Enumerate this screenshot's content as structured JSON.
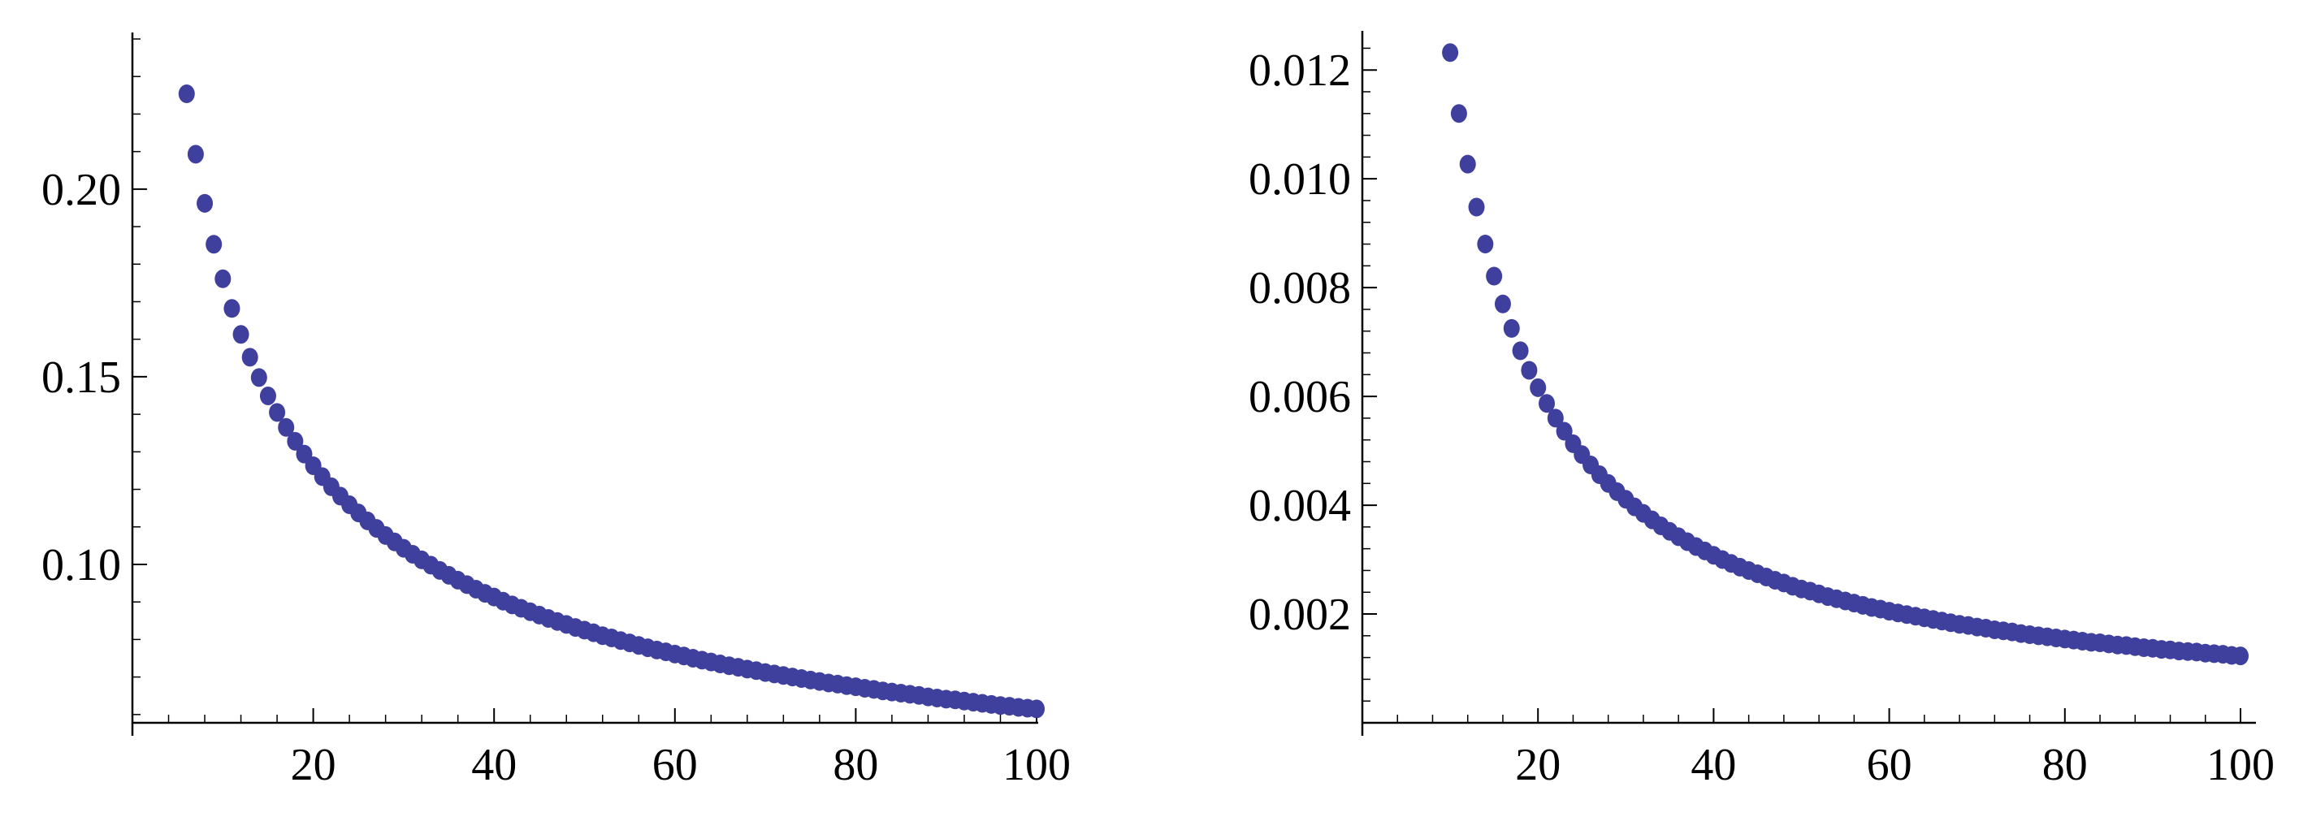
{
  "colors": {
    "marker": "#3f3f9e",
    "axis": "#000000",
    "background": "#ffffff"
  },
  "chart_data": [
    {
      "type": "scatter",
      "title": "",
      "xlabel": "",
      "ylabel": "",
      "grid": false,
      "xlim": [
        0,
        100
      ],
      "ylim": [
        0.0578,
        0.24
      ],
      "x_origin": 0,
      "y_origin": 0.0578,
      "x_ticks": [
        20,
        40,
        60,
        80,
        100
      ],
      "x_tick_labels": [
        "20",
        "40",
        "60",
        "80",
        "100"
      ],
      "y_ticks": [
        0.1,
        0.15,
        0.2
      ],
      "y_tick_labels": [
        "0.10",
        "0.15",
        "0.20"
      ],
      "x_minor_step": 4,
      "y_minor_step": 0.01,
      "series": [
        {
          "marker": "dot",
          "x": [
            6,
            7,
            8,
            9,
            10,
            11,
            12,
            13,
            14,
            15,
            16,
            17,
            18,
            19,
            20,
            21,
            22,
            23,
            24,
            25,
            26,
            27,
            28,
            29,
            30,
            31,
            32,
            33,
            34,
            35,
            36,
            37,
            38,
            39,
            40,
            41,
            42,
            43,
            44,
            45,
            46,
            47,
            48,
            49,
            50,
            51,
            52,
            53,
            54,
            55,
            56,
            57,
            58,
            59,
            60,
            61,
            62,
            63,
            64,
            65,
            66,
            67,
            68,
            69,
            70,
            71,
            72,
            73,
            74,
            75,
            76,
            77,
            78,
            79,
            80,
            81,
            82,
            83,
            84,
            85,
            86,
            87,
            88,
            89,
            90,
            91,
            92,
            93,
            94,
            95,
            96,
            97,
            98,
            99,
            100
          ],
          "y": [
            0.2254,
            0.2093,
            0.1962,
            0.1853,
            0.1761,
            0.1682,
            0.1613,
            0.1552,
            0.1498,
            0.1449,
            0.1405,
            0.1365,
            0.1328,
            0.1294,
            0.1263,
            0.1234,
            0.1207,
            0.1182,
            0.1159,
            0.1137,
            0.1116,
            0.1096,
            0.1077,
            0.106,
            0.1043,
            0.1027,
            0.1012,
            0.0998,
            0.0984,
            0.0971,
            0.0958,
            0.0946,
            0.0934,
            0.0923,
            0.0913,
            0.0902,
            0.0892,
            0.0883,
            0.0874,
            0.0865,
            0.0856,
            0.0848,
            0.084,
            0.0832,
            0.0825,
            0.0818,
            0.081,
            0.0804,
            0.0797,
            0.0791,
            0.0784,
            0.0778,
            0.0772,
            0.0767,
            0.0761,
            0.0756,
            0.075,
            0.0745,
            0.074,
            0.0735,
            0.073,
            0.0726,
            0.0721,
            0.0717,
            0.0712,
            0.0708,
            0.0704,
            0.07,
            0.0696,
            0.0692,
            0.0688,
            0.0684,
            0.0681,
            0.0677,
            0.0674,
            0.067,
            0.0667,
            0.0663,
            0.066,
            0.0657,
            0.0654,
            0.0651,
            0.0647,
            0.0644,
            0.0641,
            0.0639,
            0.0636,
            0.0633,
            0.063,
            0.0627,
            0.0624,
            0.0622,
            0.0619,
            0.0617,
            0.0615
          ]
        }
      ]
    },
    {
      "type": "scatter",
      "title": "",
      "xlabel": "",
      "ylabel": "",
      "grid": false,
      "xlim": [
        0,
        100
      ],
      "ylim": [
        0,
        0.0126
      ],
      "x_origin": 0,
      "y_origin": 0,
      "x_ticks": [
        20,
        40,
        60,
        80,
        100
      ],
      "x_tick_labels": [
        "20",
        "40",
        "60",
        "80",
        "100"
      ],
      "y_ticks": [
        0.002,
        0.004,
        0.006,
        0.008,
        0.01,
        0.012
      ],
      "y_tick_labels": [
        "0.002",
        "0.004",
        "0.006",
        "0.008",
        "0.010",
        "0.012"
      ],
      "x_minor_step": 4,
      "y_minor_step": 0.0004,
      "series": [
        {
          "marker": "dot",
          "x": [
            10,
            11,
            12,
            13,
            14,
            15,
            16,
            17,
            18,
            19,
            20,
            21,
            22,
            23,
            24,
            25,
            26,
            27,
            28,
            29,
            30,
            31,
            32,
            33,
            34,
            35,
            36,
            37,
            38,
            39,
            40,
            41,
            42,
            43,
            44,
            45,
            46,
            47,
            48,
            49,
            50,
            51,
            52,
            53,
            54,
            55,
            56,
            57,
            58,
            59,
            60,
            61,
            62,
            63,
            64,
            65,
            66,
            67,
            68,
            69,
            70,
            71,
            72,
            73,
            74,
            75,
            76,
            77,
            78,
            79,
            80,
            81,
            82,
            83,
            84,
            85,
            86,
            87,
            88,
            89,
            90,
            91,
            92,
            93,
            94,
            95,
            96,
            97,
            98,
            99,
            100
          ],
          "y": [
            0.01232,
            0.0112,
            0.01027,
            0.00948,
            0.0088,
            0.00821,
            0.0077,
            0.00725,
            0.00684,
            0.00648,
            0.00616,
            0.00587,
            0.0056,
            0.00536,
            0.00513,
            0.00493,
            0.00474,
            0.00456,
            0.0044,
            0.00425,
            0.00411,
            0.00397,
            0.00385,
            0.00373,
            0.00362,
            0.00352,
            0.00342,
            0.00333,
            0.00324,
            0.00316,
            0.00308,
            0.003,
            0.00293,
            0.00286,
            0.0028,
            0.00274,
            0.00268,
            0.00262,
            0.00257,
            0.00251,
            0.00246,
            0.00242,
            0.00237,
            0.00232,
            0.00228,
            0.00224,
            0.0022,
            0.00216,
            0.00212,
            0.00209,
            0.00205,
            0.00202,
            0.00199,
            0.00196,
            0.00193,
            0.0019,
            0.00187,
            0.00184,
            0.00181,
            0.00179,
            0.00176,
            0.00174,
            0.00171,
            0.00169,
            0.00167,
            0.00164,
            0.00162,
            0.0016,
            0.00158,
            0.00156,
            0.00154,
            0.00152,
            0.0015,
            0.00148,
            0.00147,
            0.00145,
            0.00143,
            0.00142,
            0.0014,
            0.00138,
            0.00137,
            0.00135,
            0.00134,
            0.00132,
            0.00131,
            0.0013,
            0.00128,
            0.00127,
            0.00126,
            0.00124,
            0.00123
          ]
        }
      ]
    }
  ]
}
